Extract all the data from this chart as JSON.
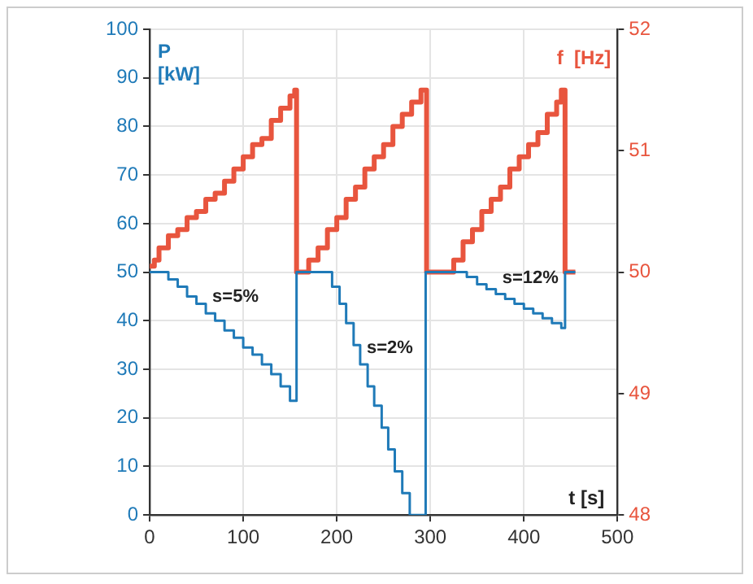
{
  "chart_data": {
    "type": "step",
    "xlabel": "t [s]",
    "ylabel": "P [kW]",
    "y2label": "f  [Hz]",
    "xlim": [
      0,
      500
    ],
    "xticks": [
      0,
      100,
      200,
      300,
      400,
      500
    ],
    "ylim": [
      0,
      100
    ],
    "yticks": [
      0,
      10,
      20,
      30,
      40,
      50,
      60,
      70,
      80,
      90,
      100
    ],
    "y2lim": [
      48,
      52
    ],
    "y2ticks": [
      48,
      49,
      50,
      51,
      52
    ],
    "grid": true,
    "annotations": [
      {
        "text": "s=5%",
        "x": 60,
        "y": 41.5
      },
      {
        "text": "s=2%",
        "x": 225,
        "y": 31
      },
      {
        "text": "s=12%",
        "x": 370,
        "y": 45.5
      }
    ],
    "series": [
      {
        "color": "#1f7ab8",
        "axis": "y",
        "x": [
          0,
          20,
          30,
          40,
          50,
          60,
          70,
          80,
          90,
          100,
          110,
          120,
          130,
          140,
          150,
          157,
          195,
          203,
          210,
          218,
          225,
          233,
          240,
          248,
          255,
          262,
          270,
          278,
          295,
          339,
          350,
          360,
          370,
          380,
          390,
          400,
          410,
          420,
          430,
          440,
          444,
          455
        ],
        "values": [
          50,
          48.5,
          47,
          45,
          43.5,
          41.5,
          40,
          38,
          36.5,
          34.5,
          33,
          31,
          29,
          26.5,
          23.5,
          50,
          47,
          43.5,
          39.5,
          35,
          31,
          26.5,
          22.5,
          18,
          13.5,
          9,
          4.5,
          0,
          50,
          49,
          47.5,
          46.5,
          45.5,
          44.5,
          43.5,
          42.5,
          41.5,
          40.5,
          39.5,
          38.5,
          50,
          50
        ]
      },
      {
        "color": "#e8553e",
        "axis": "y2",
        "x": [
          0,
          5,
          10,
          20,
          30,
          40,
          50,
          60,
          70,
          80,
          90,
          100,
          110,
          120,
          130,
          140,
          150,
          155,
          157,
          170,
          180,
          190,
          200,
          210,
          220,
          230,
          240,
          250,
          260,
          270,
          280,
          290,
          296,
          325,
          335,
          345,
          355,
          365,
          375,
          385,
          395,
          405,
          415,
          425,
          435,
          440,
          444,
          455
        ],
        "values": [
          50.05,
          50.1,
          50.2,
          50.3,
          50.35,
          50.45,
          50.5,
          50.6,
          50.65,
          50.75,
          50.85,
          50.95,
          51.05,
          51.1,
          51.25,
          51.35,
          51.45,
          51.5,
          50,
          50.1,
          50.2,
          50.35,
          50.45,
          50.6,
          50.7,
          50.85,
          50.95,
          51.05,
          51.2,
          51.3,
          51.4,
          51.5,
          50,
          50.1,
          50.25,
          50.35,
          50.5,
          50.6,
          50.7,
          50.85,
          50.95,
          51.05,
          51.15,
          51.3,
          51.4,
          51.5,
          50,
          50
        ]
      }
    ]
  }
}
